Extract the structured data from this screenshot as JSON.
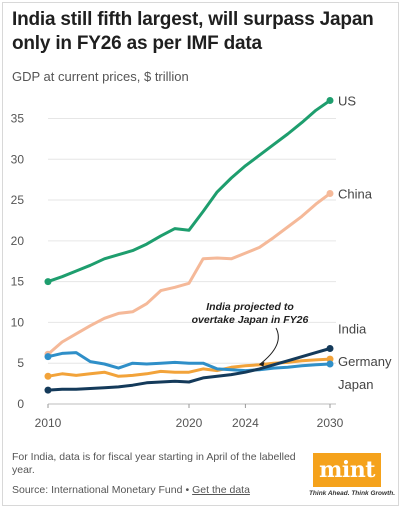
{
  "header": {
    "title": "India still fifth largest, will surpass Japan only in FY26 as per IMF data",
    "subtitle": "GDP at current prices, $ trillion"
  },
  "footer": {
    "note": "For India, data is for fiscal year starting in April of the labelled year.",
    "source_prefix": "Source: International Monetary Fund",
    "separator": "•",
    "link_label": "Get the data"
  },
  "brand": {
    "logo_text": "mint",
    "tagline": "Think Ahead. Think Growth.",
    "color": "#f5a21b"
  },
  "chart_data": {
    "type": "line",
    "title": "India still fifth largest, will surpass Japan only in FY26 as per IMF data",
    "ylabel": "GDP at current prices, $ trillion",
    "xlim": [
      2010,
      2030
    ],
    "ylim": [
      0,
      38
    ],
    "x_ticks": [
      2010,
      2020,
      2024,
      2030
    ],
    "y_ticks": [
      0,
      5,
      10,
      15,
      20,
      25,
      30,
      35
    ],
    "grid": "horizontal",
    "x": [
      2010,
      2011,
      2012,
      2013,
      2014,
      2015,
      2016,
      2017,
      2018,
      2019,
      2020,
      2021,
      2022,
      2023,
      2024,
      2025,
      2026,
      2027,
      2028,
      2029,
      2030
    ],
    "series": [
      {
        "name": "US",
        "color": "#1e9e6e",
        "values": [
          15.0,
          15.6,
          16.3,
          17.0,
          17.8,
          18.3,
          18.8,
          19.6,
          20.6,
          21.5,
          21.3,
          23.6,
          26.0,
          27.7,
          29.2,
          30.5,
          31.8,
          33.1,
          34.5,
          36.0,
          37.2
        ]
      },
      {
        "name": "China",
        "color": "#f5b999",
        "values": [
          6.1,
          7.6,
          8.6,
          9.6,
          10.5,
          11.1,
          11.3,
          12.3,
          13.9,
          14.3,
          14.8,
          17.8,
          17.9,
          17.8,
          18.5,
          19.2,
          20.4,
          21.7,
          23.0,
          24.5,
          25.8
        ]
      },
      {
        "name": "India",
        "color": "#143a5a",
        "values": [
          1.7,
          1.8,
          1.8,
          1.9,
          2.0,
          2.1,
          2.3,
          2.6,
          2.7,
          2.8,
          2.7,
          3.2,
          3.4,
          3.6,
          3.9,
          4.3,
          4.8,
          5.3,
          5.8,
          6.3,
          6.8
        ]
      },
      {
        "name": "Germany",
        "color": "#f2a33a",
        "values": [
          3.4,
          3.7,
          3.5,
          3.7,
          3.9,
          3.4,
          3.5,
          3.7,
          4.0,
          3.9,
          3.9,
          4.3,
          4.1,
          4.5,
          4.7,
          4.8,
          5.0,
          5.1,
          5.3,
          5.4,
          5.5
        ]
      },
      {
        "name": "Japan",
        "color": "#2f8fc8",
        "values": [
          5.8,
          6.2,
          6.3,
          5.2,
          4.9,
          4.4,
          5.0,
          4.9,
          5.0,
          5.1,
          5.0,
          5.0,
          4.3,
          4.2,
          4.1,
          4.2,
          4.4,
          4.5,
          4.7,
          4.8,
          4.9
        ]
      }
    ],
    "annotation": {
      "text_line1": "India projected to",
      "text_line2": "overtake Japan in FY26",
      "x": 2024,
      "y": 4.1
    }
  }
}
